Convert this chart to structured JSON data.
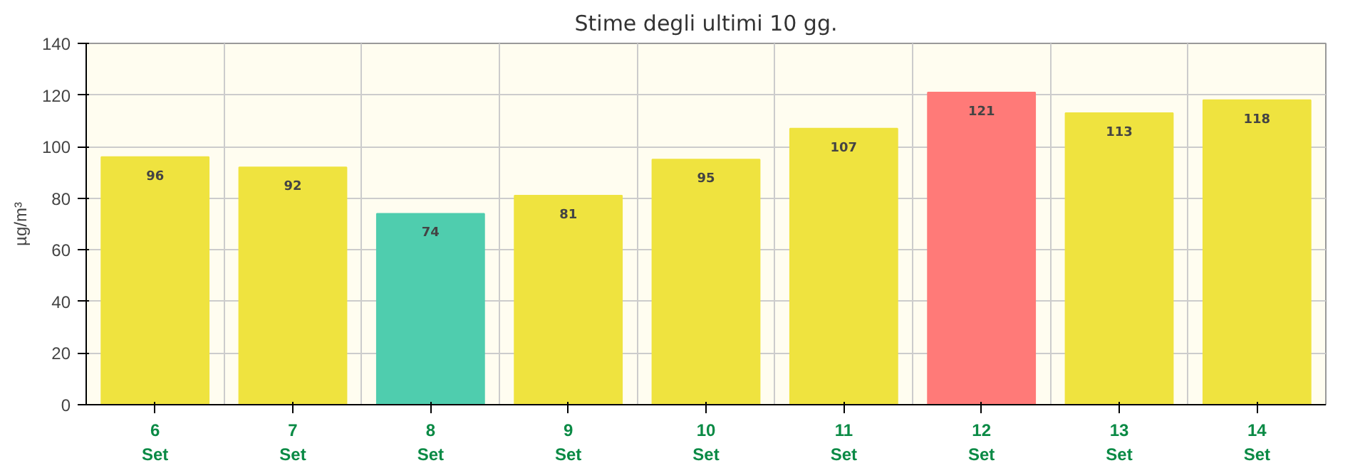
{
  "chart_data": {
    "type": "bar",
    "title": "Stime degli ultimi 10 gg.",
    "ylabel": "µg/m³",
    "categories": [
      "6\nSet",
      "7\nSet",
      "8\nSet",
      "9\nSet",
      "10\nSet",
      "11\nSet",
      "12\nSet",
      "13\nSet",
      "14\nSet"
    ],
    "values": [
      96,
      92,
      74,
      81,
      95,
      107,
      121,
      113,
      118
    ],
    "colors": [
      "#efe33f",
      "#efe33f",
      "#4fcdae",
      "#efe33f",
      "#efe33f",
      "#efe33f",
      "#ff7a78",
      "#efe33f",
      "#efe33f"
    ],
    "ylim": [
      0,
      140
    ],
    "yticks": [
      0,
      20,
      40,
      60,
      80,
      100,
      120,
      140
    ],
    "grid": true,
    "data_labels": true
  }
}
